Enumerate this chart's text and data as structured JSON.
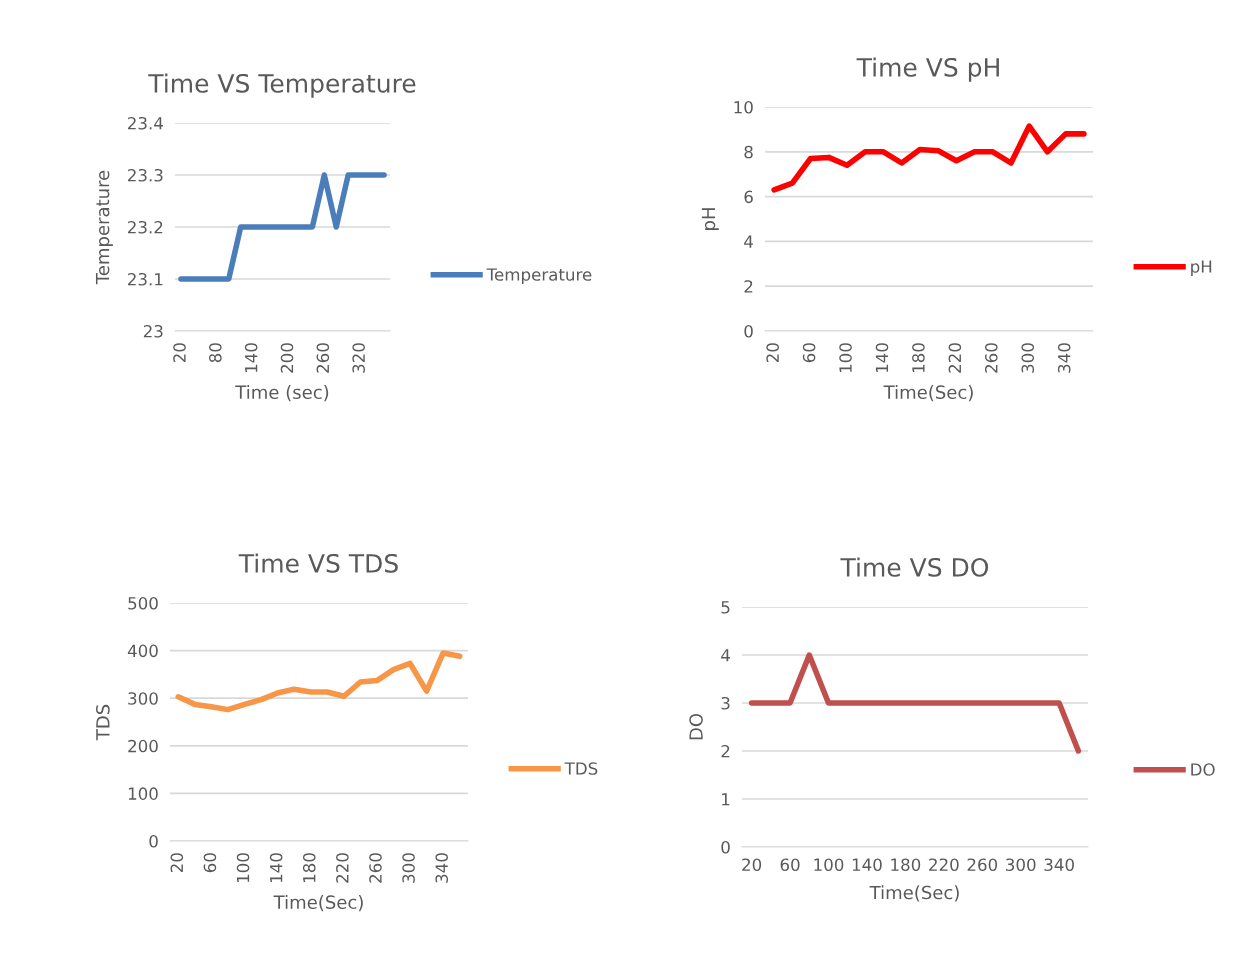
{
  "chart_data": [
    {
      "type": "line",
      "title": "Time VS Temperature",
      "xlabel": "Time (sec)",
      "ylabel": "Temperature",
      "categories": [
        "20",
        null,
        null,
        "80",
        null,
        null,
        "140",
        null,
        null,
        "200",
        null,
        null,
        "260",
        null,
        null,
        "320",
        null,
        null
      ],
      "series": [
        {
          "name": "Temperature",
          "color": "#4a7ebb",
          "values": [
            23.1,
            23.1,
            23.1,
            23.1,
            23.1,
            23.2,
            23.2,
            23.2,
            23.2,
            23.2,
            23.2,
            23.2,
            23.3,
            23.2,
            23.3,
            23.3,
            23.3,
            23.3
          ]
        }
      ],
      "ylim": [
        23,
        23.4
      ],
      "yticks": [
        23,
        23.1,
        23.2,
        23.3,
        23.4
      ],
      "grid": "y",
      "legend": "right"
    },
    {
      "type": "line",
      "title": "Time VS pH",
      "xlabel": "Time(Sec)",
      "ylabel": "pH",
      "categories": [
        "20",
        null,
        "60",
        null,
        "100",
        null,
        "140",
        null,
        "180",
        null,
        "220",
        null,
        "260",
        null,
        "300",
        null,
        "340",
        null
      ],
      "series": [
        {
          "name": "pH",
          "color": "#ff0000",
          "values": [
            6.3,
            6.6,
            7.7,
            7.75,
            7.4,
            8.0,
            8.0,
            7.5,
            8.1,
            8.05,
            7.6,
            8.0,
            8.0,
            7.5,
            9.15,
            8.0,
            8.8,
            8.8
          ]
        }
      ],
      "ylim": [
        0,
        10
      ],
      "yticks": [
        0,
        2,
        4,
        6,
        8,
        10
      ],
      "grid": "y",
      "legend": "right"
    },
    {
      "type": "line",
      "title": "Time VS TDS",
      "xlabel": "Time(Sec)",
      "ylabel": "TDS",
      "categories": [
        "20",
        null,
        "60",
        null,
        "100",
        null,
        "140",
        null,
        "180",
        null,
        "220",
        null,
        "260",
        null,
        "300",
        null,
        "340",
        null
      ],
      "series": [
        {
          "name": "TDS",
          "color": "#f79646",
          "values": [
            303,
            287,
            282,
            276,
            287,
            297,
            311,
            319,
            313,
            313,
            304,
            334,
            337,
            360,
            373,
            315,
            395,
            388
          ]
        }
      ],
      "ylim": [
        0,
        500
      ],
      "yticks": [
        0,
        100,
        200,
        300,
        400,
        500
      ],
      "grid": "y",
      "legend": "right"
    },
    {
      "type": "line",
      "title": "Time VS DO",
      "xlabel": "Time(Sec)",
      "ylabel": "DO",
      "categories": [
        "20",
        null,
        "60",
        null,
        "100",
        null,
        "140",
        null,
        "180",
        null,
        "220",
        null,
        "260",
        null,
        "300",
        null,
        "340",
        null
      ],
      "series": [
        {
          "name": "DO",
          "color": "#c0504d",
          "values": [
            3,
            3,
            3,
            4,
            3,
            3,
            3,
            3,
            3,
            3,
            3,
            3,
            3,
            3,
            3,
            3,
            3,
            2
          ]
        }
      ],
      "ylim": [
        0,
        5
      ],
      "yticks": [
        0,
        1,
        2,
        3,
        4,
        5
      ],
      "grid": "y",
      "legend": "right"
    }
  ]
}
